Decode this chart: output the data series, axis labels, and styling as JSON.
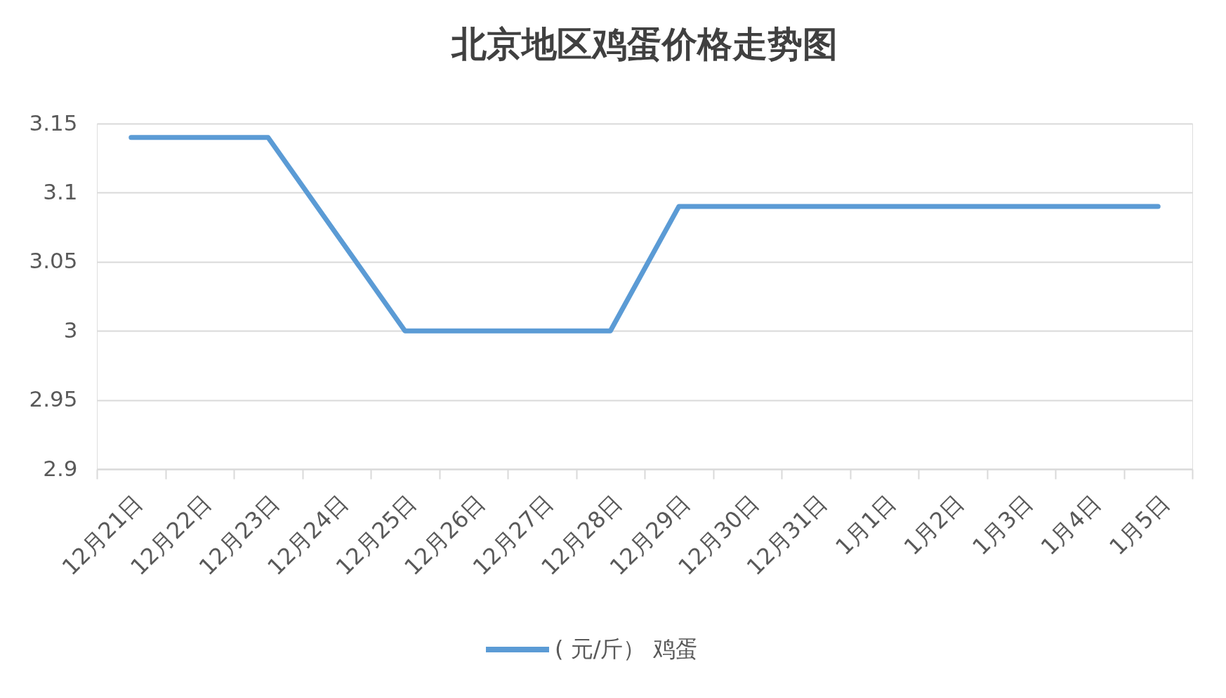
{
  "chart_data": {
    "type": "line",
    "title": "北京地区鸡蛋价格走势图",
    "categories": [
      "12月21日",
      "12月22日",
      "12月23日",
      "12月24日",
      "12月25日",
      "12月26日",
      "12月27日",
      "12月28日",
      "12月29日",
      "12月30日",
      "12月31日",
      "1月1日",
      "1月2日",
      "1月3日",
      "1月4日",
      "1月5日"
    ],
    "series": [
      {
        "name": "( 元/斤） 鸡蛋",
        "color": "#5b9bd5",
        "values": [
          3.14,
          3.14,
          3.14,
          3.07,
          3.0,
          3.0,
          3.0,
          3.0,
          3.09,
          3.09,
          3.09,
          3.09,
          3.09,
          3.09,
          3.09,
          3.09
        ]
      }
    ],
    "ylim": [
      2.9,
      3.15
    ],
    "yticks": [
      2.9,
      2.95,
      3,
      3.05,
      3.1,
      3.15
    ],
    "grid": "y",
    "legend": "bottom",
    "marker": "none",
    "line_style": "solid"
  }
}
